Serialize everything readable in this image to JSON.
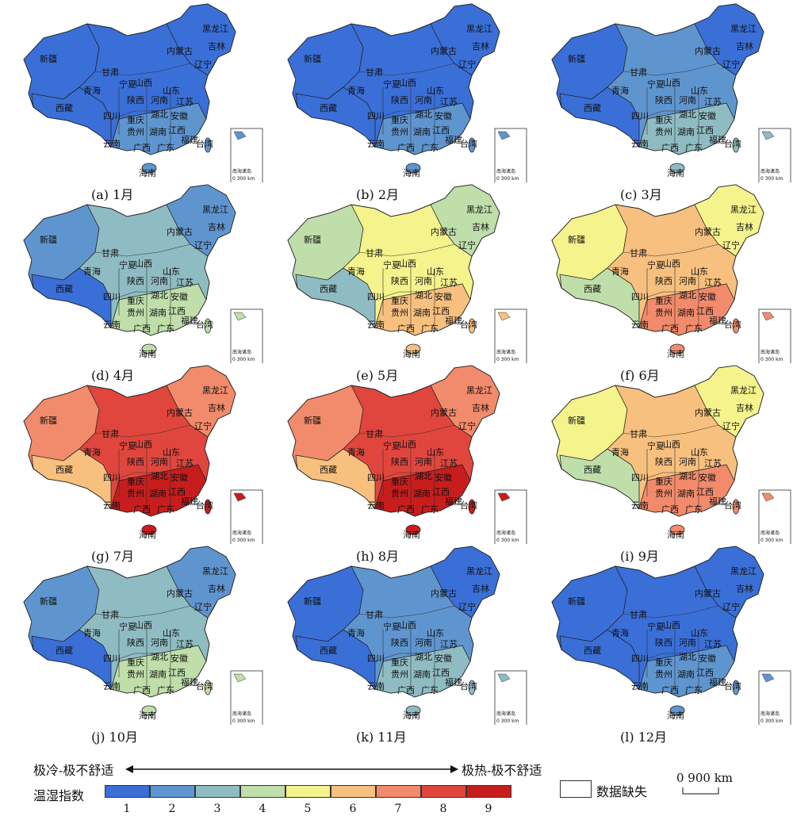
{
  "panels": [
    {
      "caption": "(a) 1月",
      "level": 1
    },
    {
      "caption": "(b) 2月",
      "level": 1
    },
    {
      "caption": "(c) 3月",
      "level": 2
    },
    {
      "caption": "(d) 4月",
      "level": 3
    },
    {
      "caption": "(e) 5月",
      "level": 5
    },
    {
      "caption": "(f) 6月",
      "level": 6
    },
    {
      "caption": "(g) 7月",
      "level": 8
    },
    {
      "caption": "(h) 8月",
      "level": 8
    },
    {
      "caption": "(i) 9月",
      "level": 6
    },
    {
      "caption": "(j) 10月",
      "level": 3
    },
    {
      "caption": "(k) 11月",
      "level": 2
    },
    {
      "caption": "(l) 12月",
      "level": 1
    }
  ],
  "map_labels": {
    "xinjiang": "新疆",
    "xizang": "西藏",
    "qinghai": "青海",
    "gansu": "甘肃",
    "neimenggu": "内蒙古",
    "heilongjiang": "黑龙江",
    "jilin": "吉林",
    "liaoning": "辽宁",
    "ningxia": "宁夏",
    "shanxi": "山西",
    "shandong": "山东",
    "shaanxi": "陕西",
    "henan": "河南",
    "jiangsu": "江苏",
    "sichuan": "四川",
    "chongqing": "重庆",
    "hubei": "湖北",
    "anhui": "安徽",
    "guizhou": "贵州",
    "hunan": "湖南",
    "jiangxi": "江西",
    "fujian": "福建",
    "yunnan": "云南",
    "guangxi": "广西",
    "guangdong": "广东",
    "taiwan": "台湾",
    "hainan": "海南",
    "inset_title": "南海诸岛",
    "inset_scale": "0 300 km"
  },
  "legend": {
    "left_text": "极冷-极不舒适",
    "right_text": "极热-极不舒适",
    "index_title": "温湿指数",
    "classes": [
      "1",
      "2",
      "3",
      "4",
      "5",
      "6",
      "7",
      "8",
      "9"
    ],
    "colors": [
      "#3a6fd8",
      "#5f95cf",
      "#8fbcc2",
      "#bfdeaa",
      "#f4f38c",
      "#f8c07e",
      "#f28b6b",
      "#e0463d",
      "#c81d1d"
    ],
    "missing_label": "数据缺失",
    "scale_label": "0   900 km"
  }
}
